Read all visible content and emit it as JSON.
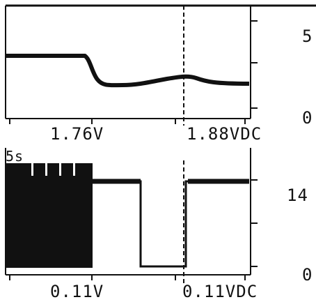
{
  "colors": {
    "background": "#ffffff",
    "trace": "#111111"
  },
  "top_panel": {
    "x_labels": [
      "1.76V",
      "1.88VDC"
    ],
    "y_labels": [
      "5",
      "0"
    ]
  },
  "bottom_panel": {
    "time_label": "5s",
    "x_labels": [
      "0.11V",
      "0.11VDC"
    ],
    "y_labels": [
      "14",
      "0"
    ]
  }
}
